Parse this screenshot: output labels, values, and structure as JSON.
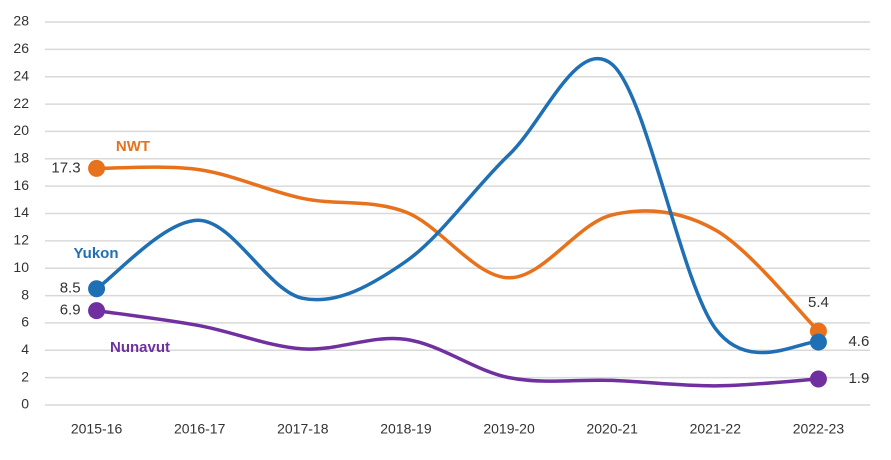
{
  "chart_data": {
    "type": "line",
    "categories": [
      "2015-16",
      "2016-17",
      "2017-18",
      "2018-19",
      "2019-20",
      "2020-21",
      "2021-22",
      "2022-23"
    ],
    "series": [
      {
        "name": "NWT",
        "color": "#e8711c",
        "values": [
          17.3,
          17.2,
          15.1,
          14.1,
          9.3,
          13.9,
          12.8,
          5.4
        ]
      },
      {
        "name": "Yukon",
        "color": "#1f6fb4",
        "values": [
          8.5,
          13.5,
          7.8,
          10.5,
          18.3,
          24.9,
          5.6,
          4.6
        ]
      },
      {
        "name": "Nunavut",
        "color": "#7030a0",
        "values": [
          6.9,
          5.8,
          4.1,
          4.8,
          2.0,
          1.8,
          1.4,
          1.9
        ]
      }
    ],
    "ylim": [
      0,
      28
    ],
    "yticks": [
      0,
      2,
      4,
      6,
      8,
      10,
      12,
      14,
      16,
      18,
      20,
      22,
      24,
      26,
      28
    ],
    "grid": true,
    "smooth": true,
    "data_labels": "ends"
  }
}
